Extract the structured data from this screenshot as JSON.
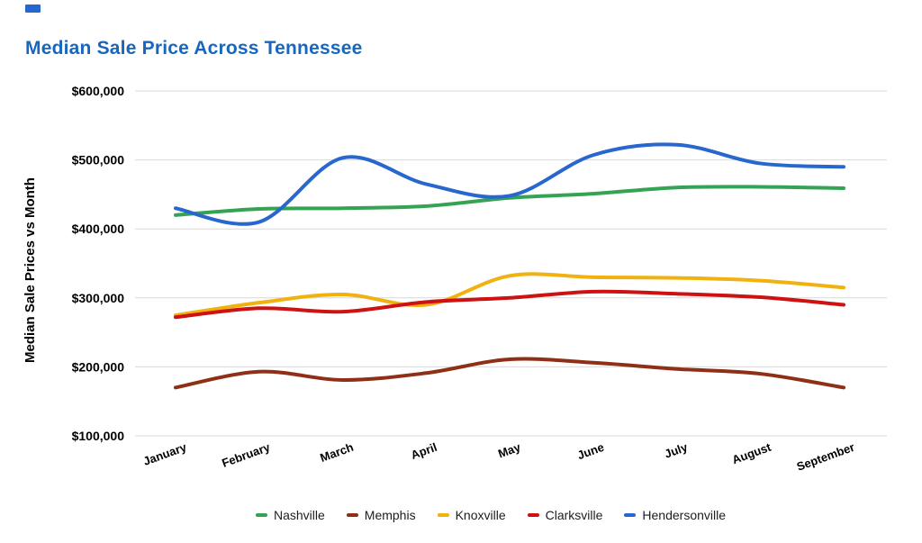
{
  "header": {
    "title": "Median Sale Price Across Tennessee",
    "title_color": "#1767BE"
  },
  "decoration": {
    "top_left_marker_color": "#2468CF"
  },
  "axes": {
    "y_title": "Median Sale Prices vs Month",
    "y_tick_labels": [
      "$600,000",
      "$500,000",
      "$400,000",
      "$300,000",
      "$200,000",
      "$100,000"
    ],
    "grid_color": "#D9D9D9",
    "tick_text_color": "#000000"
  },
  "chart_data": {
    "type": "line",
    "title": "Median Sale Price Across Tennessee",
    "xlabel": "",
    "ylabel": "Median Sale Prices vs Month",
    "categories": [
      "January",
      "February",
      "March",
      "April",
      "May",
      "June",
      "July",
      "August",
      "September"
    ],
    "series": [
      {
        "name": "Nashville",
        "color": "#34A353",
        "values": [
          420000,
          429000,
          430000,
          433000,
          445000,
          451000,
          460000,
          461000,
          459000
        ]
      },
      {
        "name": "Memphis",
        "color": "#8E2F16",
        "values": [
          170000,
          193000,
          181000,
          191000,
          211000,
          206000,
          197000,
          190000,
          170000
        ]
      },
      {
        "name": "Knoxville",
        "color": "#F1B10E",
        "values": [
          275000,
          293000,
          305000,
          290000,
          332000,
          330000,
          329000,
          325000,
          315000
        ]
      },
      {
        "name": "Clarksville",
        "color": "#CE1212",
        "values": [
          272000,
          285000,
          280000,
          294000,
          300000,
          309000,
          306000,
          301000,
          290000
        ]
      },
      {
        "name": "Hendersonville",
        "color": "#2767CE",
        "values": [
          430000,
          410000,
          503000,
          465000,
          448000,
          507000,
          522000,
          495000,
          490000
        ]
      }
    ],
    "ylim": [
      100000,
      600000
    ],
    "y_tick_step": 100000,
    "grid": "horizontal",
    "legend_position": "bottom",
    "x_label_rotation_deg": -20,
    "smooth": true
  }
}
